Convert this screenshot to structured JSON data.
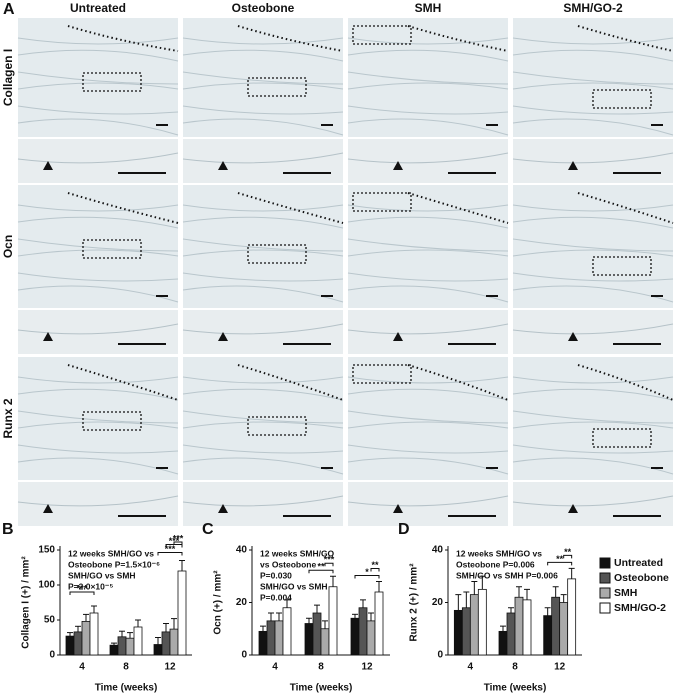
{
  "panel_a": {
    "label": "A",
    "columns": [
      "Untreated",
      "Osteobone",
      "SMH",
      "SMH/GO-2"
    ],
    "rows": [
      "Collagen I",
      "Ocn",
      "Runx 2"
    ]
  },
  "chart_data": [
    {
      "type": "bar",
      "label": "B",
      "ylabel": "Collagen I (+) / mm²",
      "xlabel": "Time (weeks)",
      "categories": [
        "4",
        "8",
        "12"
      ],
      "ylim": [
        0,
        150
      ],
      "yticks": [
        0,
        50,
        100,
        150
      ],
      "notes": [
        "12 weeks SMH/GO vs",
        "Osteobone P=1.5×10⁻⁶",
        "SMH/GO vs SMH",
        "P=2.0×10⁻⁵"
      ],
      "significance": [
        "***",
        "***",
        "***",
        "***"
      ],
      "series": [
        {
          "color": "#111111",
          "values": [
            27,
            14,
            15
          ],
          "errors": [
            5,
            3,
            10
          ]
        },
        {
          "color": "#555555",
          "values": [
            33,
            26,
            33
          ],
          "errors": [
            8,
            8,
            12
          ]
        },
        {
          "color": "#aaaaaa",
          "values": [
            48,
            24,
            37
          ],
          "errors": [
            10,
            8,
            15
          ]
        },
        {
          "color": "#ffffff",
          "values": [
            60,
            40,
            120
          ],
          "errors": [
            10,
            10,
            15
          ]
        }
      ]
    },
    {
      "type": "bar",
      "label": "C",
      "ylabel": "Ocn (+) / mm²",
      "xlabel": "Time (weeks)",
      "categories": [
        "4",
        "8",
        "12"
      ],
      "ylim": [
        0,
        40
      ],
      "yticks": [
        0,
        20,
        40
      ],
      "notes": [
        "12 weeks SMH/GO",
        "vs Osteobone",
        "P=0.030",
        "SMH/GO vs SMH",
        "P=0.004"
      ],
      "significance": [
        "**",
        "***",
        "*",
        "**"
      ],
      "series": [
        {
          "color": "#111111",
          "values": [
            9,
            12,
            14
          ],
          "errors": [
            2,
            2,
            1.5
          ]
        },
        {
          "color": "#555555",
          "values": [
            13,
            16,
            18
          ],
          "errors": [
            3,
            3,
            3
          ]
        },
        {
          "color": "#aaaaaa",
          "values": [
            13,
            10,
            13
          ],
          "errors": [
            3,
            3,
            3
          ]
        },
        {
          "color": "#ffffff",
          "values": [
            18,
            26,
            24
          ],
          "errors": [
            3,
            4,
            4
          ]
        }
      ]
    },
    {
      "type": "bar",
      "label": "D",
      "ylabel": "Runx 2 (+) / mm²",
      "xlabel": "Time (weeks)",
      "categories": [
        "4",
        "8",
        "12"
      ],
      "ylim": [
        0,
        40
      ],
      "yticks": [
        0,
        20,
        40
      ],
      "notes": [
        "12 weeks SMH/GO vs",
        "Osteobone P=0.006",
        "SMH/GO vs SMH P=0.006"
      ],
      "significance": [
        "**",
        "**"
      ],
      "series": [
        {
          "name": "Untreated",
          "color": "#111111",
          "values": [
            17,
            9,
            15
          ],
          "errors": [
            6,
            2,
            3
          ]
        },
        {
          "name": "Osteobone",
          "color": "#555555",
          "values": [
            18,
            16,
            22
          ],
          "errors": [
            6,
            2,
            4
          ]
        },
        {
          "name": "SMH",
          "color": "#aaaaaa",
          "values": [
            23,
            22,
            20
          ],
          "errors": [
            5,
            4,
            3
          ]
        },
        {
          "name": "SMH/GO-2",
          "color": "#ffffff",
          "values": [
            25,
            21,
            29
          ],
          "errors": [
            5,
            4,
            4
          ]
        }
      ]
    }
  ]
}
